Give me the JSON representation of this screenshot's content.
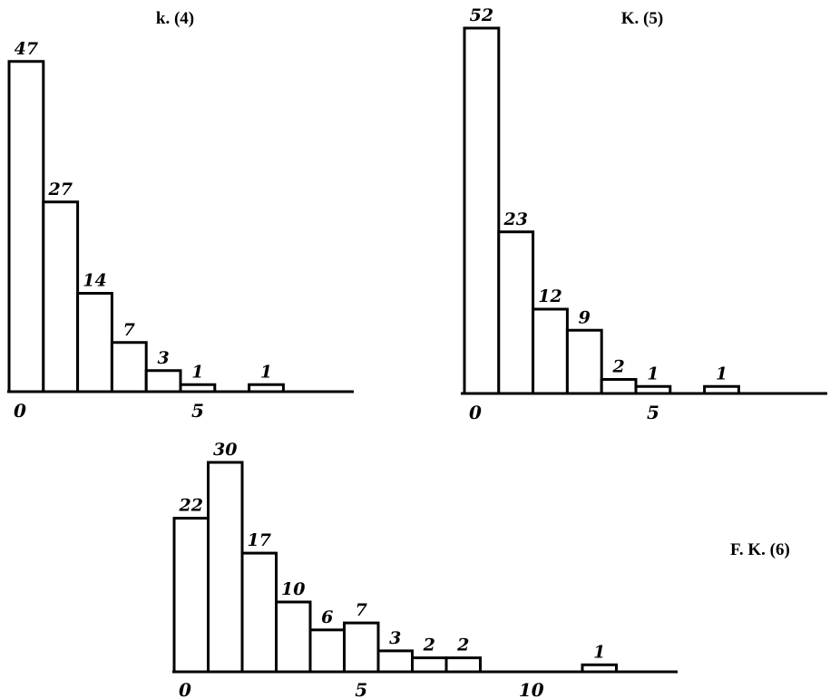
{
  "chart_data": [
    {
      "type": "bar",
      "title": "k. (4)",
      "categories": [
        0,
        1,
        2,
        3,
        4,
        5,
        6,
        7
      ],
      "values": [
        47,
        27,
        14,
        7,
        3,
        1,
        0,
        1
      ],
      "tick_labels": [
        "0",
        "5"
      ],
      "tick_positions": [
        0,
        5
      ],
      "xlabel": "",
      "ylabel": ""
    },
    {
      "type": "bar",
      "title": "K. (5)",
      "categories": [
        0,
        1,
        2,
        3,
        4,
        5,
        6,
        7
      ],
      "values": [
        52,
        23,
        12,
        9,
        2,
        1,
        0,
        1
      ],
      "tick_labels": [
        "0",
        "5"
      ],
      "tick_positions": [
        0,
        5
      ],
      "xlabel": "",
      "ylabel": ""
    },
    {
      "type": "bar",
      "title": "F. K. (6)",
      "categories": [
        0,
        1,
        2,
        3,
        4,
        5,
        6,
        7,
        8,
        9,
        10,
        11,
        12
      ],
      "values": [
        22,
        30,
        17,
        10,
        6,
        7,
        3,
        2,
        2,
        0,
        0,
        0,
        1
      ],
      "tick_labels": [
        "0",
        "5",
        "10"
      ],
      "tick_positions": [
        0,
        5,
        10
      ],
      "xlabel": "",
      "ylabel": ""
    }
  ]
}
